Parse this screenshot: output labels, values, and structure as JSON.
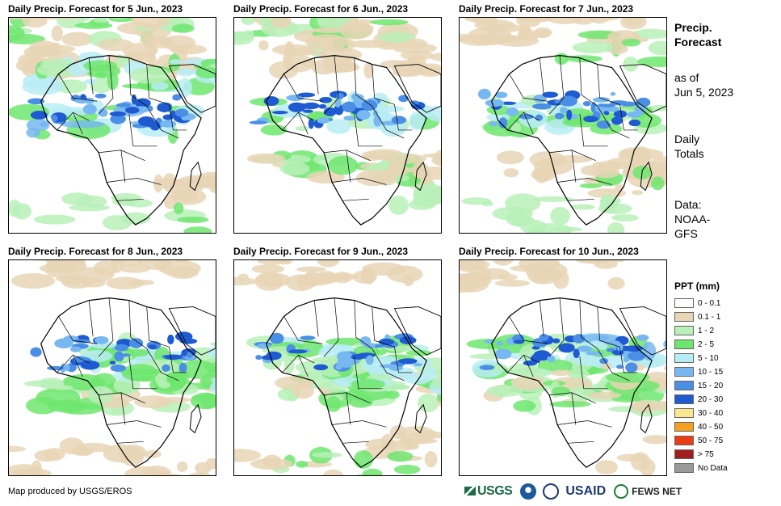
{
  "panels": [
    {
      "title": "Daily Precip. Forecast for 5 Jun., 2023"
    },
    {
      "title": "Daily Precip. Forecast for 6 Jun., 2023"
    },
    {
      "title": "Daily Precip. Forecast for 7 Jun., 2023"
    },
    {
      "title": "Daily Precip. Forecast for 8 Jun., 2023"
    },
    {
      "title": "Daily Precip. Forecast for 9 Jun., 2023"
    },
    {
      "title": "Daily Precip. Forecast for 10 Jun., 2023"
    }
  ],
  "side": {
    "title_line1": "Precip.",
    "title_line2": "Forecast",
    "asof_line1": "as of",
    "asof_line2": "Jun 5, 2023",
    "totals_line1": "Daily",
    "totals_line2": "Totals",
    "data_line1": "Data:",
    "data_line2": "NOAA-",
    "data_line3": "GFS"
  },
  "legend": {
    "title": "PPT (mm)",
    "items": [
      {
        "label": "0 - 0.1",
        "color": "#ffffff"
      },
      {
        "label": "0.1 - 1",
        "color": "#e8d5b5"
      },
      {
        "label": "1 - 2",
        "color": "#b8f0b8"
      },
      {
        "label": "2 - 5",
        "color": "#6ee66e"
      },
      {
        "label": "5 - 10",
        "color": "#b8ecf5"
      },
      {
        "label": "10 - 15",
        "color": "#78b8f0"
      },
      {
        "label": "15 - 20",
        "color": "#4a8ee6"
      },
      {
        "label": "20 - 30",
        "color": "#1e5ad2"
      },
      {
        "label": "30 - 40",
        "color": "#fae68c"
      },
      {
        "label": "40 - 50",
        "color": "#f5a01e"
      },
      {
        "label": "50 - 75",
        "color": "#eb3c14"
      },
      {
        "label": "> 75",
        "color": "#a01e1e"
      },
      {
        "label": "No Data",
        "color": "#999999"
      }
    ]
  },
  "footer": {
    "credit": "Map produced by USGS/EROS"
  },
  "logos": {
    "usgs": "USGS",
    "usaid": "USAID",
    "fews": "FEWS NET"
  }
}
